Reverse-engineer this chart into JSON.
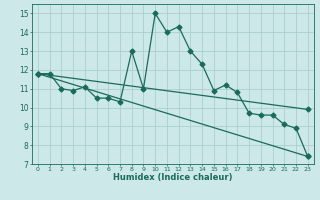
{
  "xlabel": "Humidex (Indice chaleur)",
  "xlim": [
    -0.5,
    23.5
  ],
  "ylim": [
    7,
    15.5
  ],
  "yticks": [
    7,
    8,
    9,
    10,
    11,
    12,
    13,
    14,
    15
  ],
  "xticks": [
    0,
    1,
    2,
    3,
    4,
    5,
    6,
    7,
    8,
    9,
    10,
    11,
    12,
    13,
    14,
    15,
    16,
    17,
    18,
    19,
    20,
    21,
    22,
    23
  ],
  "background_color": "#cce8e8",
  "grid_color": "#aacece",
  "line_color": "#1a6b5a",
  "series1_x": [
    0,
    1,
    2,
    3,
    4,
    5,
    6,
    7,
    8,
    9,
    10,
    11,
    12,
    13,
    14,
    15,
    16,
    17,
    18,
    19,
    20,
    21,
    22,
    23
  ],
  "series1_y": [
    11.8,
    11.8,
    11.0,
    10.9,
    11.1,
    10.5,
    10.5,
    10.3,
    13.0,
    11.0,
    15.0,
    14.0,
    14.3,
    13.0,
    12.3,
    10.9,
    11.2,
    10.8,
    9.7,
    9.6,
    9.6,
    9.1,
    8.9,
    7.4
  ],
  "series2_x": [
    0,
    23
  ],
  "series2_y": [
    11.8,
    9.9
  ],
  "series3_x": [
    0,
    23
  ],
  "series3_y": [
    11.8,
    7.4
  ],
  "markersize": 2.5,
  "linewidth": 0.9
}
